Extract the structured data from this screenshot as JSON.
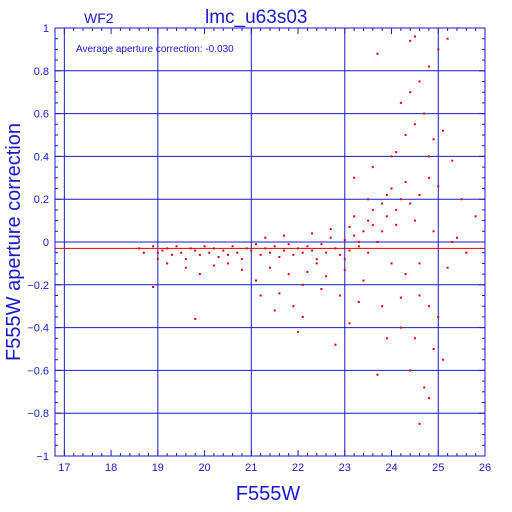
{
  "chart_data": {
    "type": "scatter",
    "title": "lmc_u63s03",
    "chip_label": "WF2",
    "annotation": "Average aperture correction: -0.030",
    "xlabel": "F555W",
    "ylabel": "F555W aperture correction",
    "xlim": [
      16.8,
      26
    ],
    "ylim": [
      -1,
      1
    ],
    "x_ticks": [
      17,
      18,
      19,
      20,
      21,
      22,
      23,
      24,
      25,
      26
    ],
    "y_ticks": [
      1,
      0.8,
      0.6,
      0.4,
      0.2,
      0,
      -0.2,
      -0.4,
      -0.6,
      -0.8,
      -1
    ],
    "y_tick_labels": [
      "1",
      "0.8",
      "0.6",
      "0.4",
      "0.2",
      "0",
      "−0.2",
      "−0.4",
      "−0.6",
      "−0.8",
      "−1"
    ],
    "grid": true,
    "reference_lines": {
      "zero": 0,
      "average": -0.03
    },
    "colors": {
      "axes": "#1a1acc",
      "points": "#e00000"
    },
    "series": [
      {
        "points": [
          [
            18.6,
            -0.03
          ],
          [
            18.9,
            -0.02
          ],
          [
            19.0,
            -0.05
          ],
          [
            19.1,
            -0.04
          ],
          [
            19.2,
            -0.03
          ],
          [
            19.3,
            -0.06
          ],
          [
            19.4,
            -0.02
          ],
          [
            19.5,
            -0.05
          ],
          [
            19.6,
            -0.08
          ],
          [
            19.7,
            -0.03
          ],
          [
            19.8,
            -0.04
          ],
          [
            19.9,
            -0.06
          ],
          [
            20.0,
            -0.02
          ],
          [
            20.1,
            -0.05
          ],
          [
            20.2,
            -0.03
          ],
          [
            20.3,
            -0.07
          ],
          [
            20.4,
            -0.04
          ],
          [
            20.5,
            -0.06
          ],
          [
            20.6,
            -0.02
          ],
          [
            20.7,
            -0.05
          ],
          [
            20.8,
            -0.08
          ],
          [
            20.9,
            -0.03
          ],
          [
            21.0,
            -0.04
          ],
          [
            21.1,
            -0.01
          ],
          [
            21.2,
            -0.06
          ],
          [
            21.3,
            -0.03
          ],
          [
            21.4,
            -0.05
          ],
          [
            21.5,
            -0.02
          ],
          [
            21.6,
            -0.07
          ],
          [
            21.7,
            -0.04
          ],
          [
            21.8,
            -0.01
          ],
          [
            21.9,
            -0.06
          ],
          [
            22.0,
            -0.03
          ],
          [
            22.1,
            -0.05
          ],
          [
            22.2,
            -0.02
          ],
          [
            22.3,
            -0.04
          ],
          [
            22.4,
            -0.08
          ],
          [
            22.5,
            -0.01
          ],
          [
            22.6,
            -0.05
          ],
          [
            22.7,
            0.02
          ],
          [
            22.8,
            -0.03
          ],
          [
            22.9,
            -0.06
          ],
          [
            23.0,
            0.01
          ],
          [
            23.1,
            -0.04
          ],
          [
            23.2,
            0.03
          ],
          [
            23.3,
            -0.02
          ],
          [
            23.4,
            0.05
          ],
          [
            23.5,
            -0.05
          ],
          [
            23.6,
            0.08
          ],
          [
            23.7,
            0.0
          ],
          [
            19.2,
            -0.1
          ],
          [
            19.6,
            -0.12
          ],
          [
            20.2,
            -0.11
          ],
          [
            20.8,
            -0.13
          ],
          [
            21.4,
            -0.12
          ],
          [
            21.8,
            -0.15
          ],
          [
            22.2,
            -0.14
          ],
          [
            22.6,
            -0.16
          ],
          [
            23.0,
            -0.13
          ],
          [
            23.4,
            -0.18
          ],
          [
            18.9,
            -0.21
          ],
          [
            19.9,
            -0.15
          ],
          [
            21.1,
            -0.18
          ],
          [
            21.6,
            -0.24
          ],
          [
            22.1,
            -0.2
          ],
          [
            22.5,
            -0.22
          ],
          [
            22.9,
            -0.25
          ],
          [
            23.3,
            -0.28
          ],
          [
            23.8,
            -0.3
          ],
          [
            24.2,
            -0.26
          ],
          [
            21.3,
            0.02
          ],
          [
            21.7,
            0.03
          ],
          [
            22.3,
            0.04
          ],
          [
            22.7,
            0.06
          ],
          [
            23.1,
            0.07
          ],
          [
            23.5,
            0.1
          ],
          [
            23.9,
            0.12
          ],
          [
            24.1,
            0.15
          ],
          [
            23.2,
            0.12
          ],
          [
            23.6,
            0.15
          ],
          [
            23.8,
            0.18
          ],
          [
            24.2,
            0.2
          ],
          [
            24.4,
            0.18
          ],
          [
            24.0,
            0.25
          ],
          [
            24.3,
            0.28
          ],
          [
            24.6,
            0.22
          ],
          [
            24.8,
            0.3
          ],
          [
            25.0,
            0.26
          ],
          [
            23.5,
            0.2
          ],
          [
            23.9,
            0.22
          ],
          [
            23.2,
            0.3
          ],
          [
            23.6,
            0.35
          ],
          [
            24.0,
            0.4
          ],
          [
            24.3,
            0.5
          ],
          [
            24.5,
            0.55
          ],
          [
            24.7,
            0.6
          ],
          [
            24.9,
            0.48
          ],
          [
            25.1,
            0.52
          ],
          [
            24.2,
            0.65
          ],
          [
            24.4,
            0.7
          ],
          [
            24.6,
            0.75
          ],
          [
            24.8,
            0.82
          ],
          [
            25.0,
            0.9
          ],
          [
            25.2,
            0.95
          ],
          [
            24.5,
            0.96
          ],
          [
            24.4,
            0.94
          ],
          [
            23.7,
            0.88
          ],
          [
            24.1,
            0.42
          ],
          [
            24.8,
            0.4
          ],
          [
            25.3,
            0.38
          ],
          [
            24.0,
            -0.1
          ],
          [
            24.3,
            -0.15
          ],
          [
            24.6,
            -0.25
          ],
          [
            24.8,
            -0.3
          ],
          [
            25.0,
            -0.35
          ],
          [
            24.2,
            -0.4
          ],
          [
            24.5,
            -0.45
          ],
          [
            24.9,
            -0.5
          ],
          [
            25.1,
            -0.55
          ],
          [
            24.4,
            -0.6
          ],
          [
            24.7,
            -0.68
          ],
          [
            24.8,
            -0.73
          ],
          [
            23.7,
            -0.62
          ],
          [
            23.9,
            -0.45
          ],
          [
            22.8,
            -0.48
          ],
          [
            23.1,
            -0.38
          ],
          [
            22.1,
            -0.35
          ],
          [
            21.9,
            -0.3
          ],
          [
            21.5,
            -0.32
          ],
          [
            21.2,
            -0.25
          ],
          [
            19.8,
            -0.36
          ],
          [
            22.0,
            -0.42
          ],
          [
            24.6,
            -0.85
          ],
          [
            25.5,
            0.2
          ],
          [
            25.8,
            0.12
          ],
          [
            25.4,
            0.02
          ],
          [
            25.2,
            -0.12
          ],
          [
            25.6,
            -0.05
          ],
          [
            19.0,
            -0.08
          ],
          [
            18.7,
            -0.05
          ],
          [
            20.5,
            -0.1
          ],
          [
            22.4,
            -0.1
          ],
          [
            23.0,
            -0.08
          ],
          [
            23.3,
            0.0
          ],
          [
            23.8,
            0.05
          ],
          [
            24.1,
            0.08
          ],
          [
            24.5,
            0.1
          ],
          [
            24.9,
            0.05
          ],
          [
            25.3,
            0.0
          ],
          [
            24.6,
            -0.1
          ]
        ]
      }
    ]
  }
}
